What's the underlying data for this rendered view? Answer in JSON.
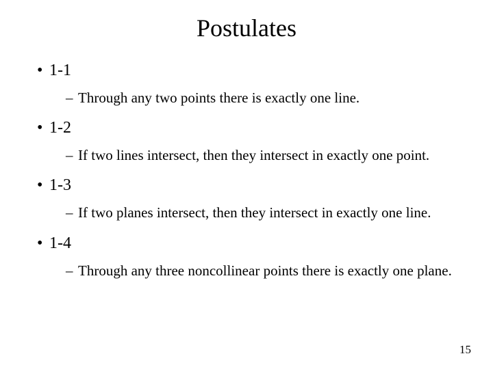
{
  "title": "Postulates",
  "items": [
    {
      "label": "1-1",
      "desc": "Through any two points there is exactly one line."
    },
    {
      "label": "1-2",
      "desc": "If two lines intersect, then they intersect in exactly one point."
    },
    {
      "label": "1-3",
      "desc": "If two planes intersect, then they intersect in exactly one line."
    },
    {
      "label": "1-4",
      "desc": "Through any three noncollinear points there is exactly one plane."
    }
  ],
  "page_number": "15",
  "colors": {
    "background": "#ffffff",
    "text": "#000000"
  },
  "typography": {
    "title_fontsize": 36,
    "l1_fontsize": 24,
    "l2_fontsize": 21,
    "font_family": "Times New Roman"
  }
}
